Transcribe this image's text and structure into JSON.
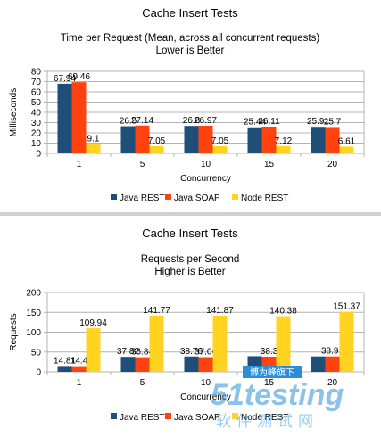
{
  "chart_data": [
    {
      "type": "bar",
      "title": "Cache Insert Tests",
      "subtitle": "Time per Request (Mean, across all concurrent requests)",
      "subtitle2": "Lower is Better",
      "xlabel": "Concurrency",
      "ylabel": "Milliseconds",
      "categories": [
        "1",
        "5",
        "10",
        "15",
        "20"
      ],
      "ylim": [
        0,
        80
      ],
      "yticks": [
        "0",
        "10",
        "20",
        "30",
        "40",
        "50",
        "60",
        "70",
        "80"
      ],
      "grid": true,
      "legend_position": "bottom",
      "series": [
        {
          "name": "Java REST",
          "color": "#1f4e79",
          "values": [
            67.94,
            26.5,
            26.8,
            25.44,
            25.91
          ],
          "labels": [
            "67.94",
            "26.5",
            "26.8",
            "25.44",
            "25.91"
          ]
        },
        {
          "name": "Java SOAP",
          "color": "#ff420e",
          "values": [
            69.46,
            27.14,
            26.97,
            26.11,
            25.7
          ],
          "labels": [
            "69.46",
            "27.14",
            "26.97",
            "26.11",
            "25.7"
          ]
        },
        {
          "name": "Node REST",
          "color": "#ffd320",
          "values": [
            9.1,
            7.05,
            7.05,
            7.12,
            6.61
          ],
          "labels": [
            "9.1",
            "7.05",
            "7.05",
            "7.12",
            "6.61"
          ]
        }
      ]
    },
    {
      "type": "bar",
      "title": "Cache Insert Tests",
      "subtitle": "Requests per Second",
      "subtitle2": "Higher is Better",
      "xlabel": "Concurrency",
      "ylabel": "Requests",
      "categories": [
        "1",
        "5",
        "10",
        "15",
        "20"
      ],
      "ylim": [
        0,
        200
      ],
      "yticks": [
        "0",
        "50",
        "100",
        "150",
        "200"
      ],
      "grid": true,
      "legend_position": "bottom",
      "series": [
        {
          "name": "Java REST",
          "color": "#1f4e79",
          "values": [
            14.81,
            37.82,
            38.76,
            39.44,
            38.91
          ],
          "labels": [
            "14.81",
            "37.82",
            "38.76",
            "",
            ""
          ]
        },
        {
          "name": "Java SOAP",
          "color": "#ff420e",
          "values": [
            14.4,
            36.84,
            37.06,
            38.3,
            38.91
          ],
          "labels": [
            "14.4",
            "36.84",
            "37.06",
            "38.3",
            "38.91"
          ]
        },
        {
          "name": "Node REST",
          "color": "#ffd320",
          "values": [
            109.94,
            141.77,
            141.87,
            140.38,
            151.37
          ],
          "labels": [
            "109.94",
            "141.77",
            "141.87",
            "140.38",
            "151.37"
          ]
        }
      ]
    }
  ],
  "watermark": {
    "badge": "博为峰旗下",
    "brand": "51testing",
    "tagline": "软件测试网",
    "color": "#2a8fd8"
  }
}
